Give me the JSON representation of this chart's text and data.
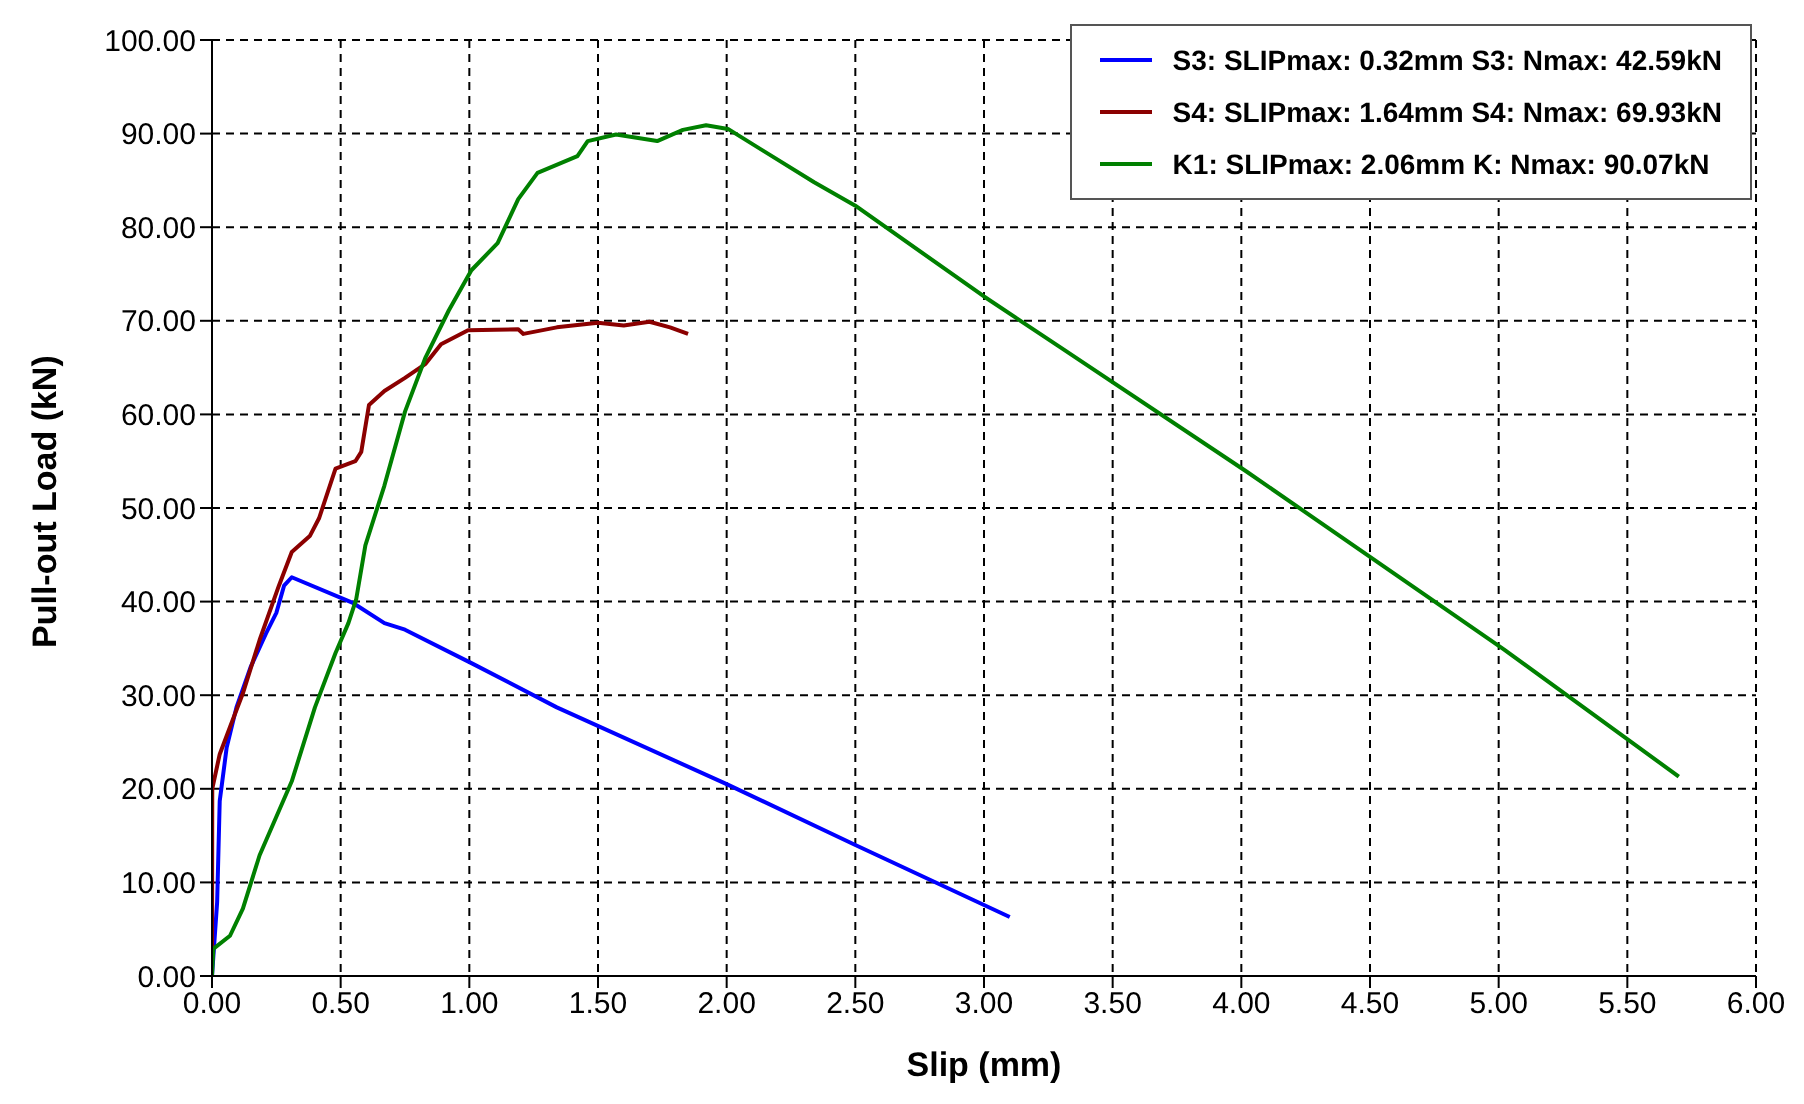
{
  "chart_data": {
    "type": "line",
    "xlabel": "Slip (mm)",
    "ylabel": "Pull-out Load (kN)",
    "xlim": [
      0,
      6
    ],
    "ylim": [
      0,
      100
    ],
    "xticks": [
      {
        "value": 0,
        "label": "0.00"
      },
      {
        "value": 0.5,
        "label": "0.50"
      },
      {
        "value": 1,
        "label": "1.00"
      },
      {
        "value": 1.5,
        "label": "1.50"
      },
      {
        "value": 2,
        "label": "2.00"
      },
      {
        "value": 2.5,
        "label": "2.50"
      },
      {
        "value": 3,
        "label": "3.00"
      },
      {
        "value": 3.5,
        "label": "3.50"
      },
      {
        "value": 4,
        "label": "4.00"
      },
      {
        "value": 4.5,
        "label": "4.50"
      },
      {
        "value": 5,
        "label": "5.00"
      },
      {
        "value": 5.5,
        "label": "5.50"
      },
      {
        "value": 6,
        "label": "6.00"
      }
    ],
    "yticks": [
      {
        "value": 0,
        "label": "0.00"
      },
      {
        "value": 10,
        "label": "10.00"
      },
      {
        "value": 20,
        "label": "20.00"
      },
      {
        "value": 30,
        "label": "30.00"
      },
      {
        "value": 40,
        "label": "40.00"
      },
      {
        "value": 50,
        "label": "50.00"
      },
      {
        "value": 60,
        "label": "60.00"
      },
      {
        "value": 70,
        "label": "70.00"
      },
      {
        "value": 80,
        "label": "80.00"
      },
      {
        "value": 90,
        "label": "90.00"
      },
      {
        "value": 100,
        "label": "100.00"
      }
    ],
    "grid": true,
    "legend": "top right",
    "marker": "none",
    "line_style": "solid",
    "series": [
      {
        "name": "S3: SLIPmax: 0.32mm S3: Nmax: 42.59kN",
        "color": "#0000ff",
        "x": [
          0,
          0.02,
          0.03,
          0.057,
          0.095,
          0.15,
          0.21,
          0.25,
          0.28,
          0.31,
          0.545,
          0.67,
          0.75,
          1.01,
          1.34,
          2.0,
          2.5,
          3.1
        ],
        "values": [
          0,
          7.9,
          18.7,
          24.4,
          28.7,
          33,
          36.6,
          38.8,
          41.7,
          42.6,
          39.9,
          37.7,
          37,
          33.4,
          28.7,
          20.5,
          14,
          6.3
        ]
      },
      {
        "name": "S4: SLIPmax: 1.64mm S4: Nmax: 69.93kN",
        "color": "#8b0000",
        "x": [
          0,
          0.001,
          0.03,
          0.07,
          0.12,
          0.185,
          0.26,
          0.31,
          0.38,
          0.416,
          0.48,
          0.557,
          0.58,
          0.61,
          0.67,
          0.75,
          0.83,
          0.89,
          0.995,
          1.19,
          1.21,
          1.34,
          1.5,
          1.6,
          1.7,
          1.78,
          1.85
        ],
        "values": [
          0,
          20,
          23.7,
          26.6,
          30.2,
          35.9,
          41.7,
          45.3,
          47,
          48.9,
          54.2,
          55,
          56,
          61,
          62.5,
          63.9,
          65.4,
          67.5,
          69,
          69.1,
          68.6,
          69.3,
          69.8,
          69.5,
          69.9,
          69.3,
          68.6
        ]
      },
      {
        "name": "K1: SLIPmax: 2.06mm K: Nmax: 90.07kN",
        "color": "#008000",
        "x": [
          0,
          0.005,
          0.07,
          0.12,
          0.185,
          0.31,
          0.4,
          0.48,
          0.53,
          0.56,
          0.596,
          0.67,
          0.75,
          0.83,
          0.92,
          1.008,
          1.11,
          1.19,
          1.265,
          1.42,
          1.46,
          1.57,
          1.73,
          1.83,
          1.92,
          2.005,
          2.34,
          2.5,
          3.0,
          3.3,
          4.02,
          5.02,
          5.7
        ],
        "values": [
          0,
          2.9,
          4.3,
          7.2,
          12.9,
          20.8,
          28.7,
          34.5,
          37.7,
          40.2,
          46,
          52.4,
          60.3,
          66.1,
          71.1,
          75.4,
          78.3,
          83,
          85.8,
          87.6,
          89.2,
          89.9,
          89.2,
          90.4,
          90.9,
          90.5,
          84.8,
          82.3,
          72.6,
          67.1,
          53.9,
          34.9,
          21.3
        ]
      }
    ]
  }
}
